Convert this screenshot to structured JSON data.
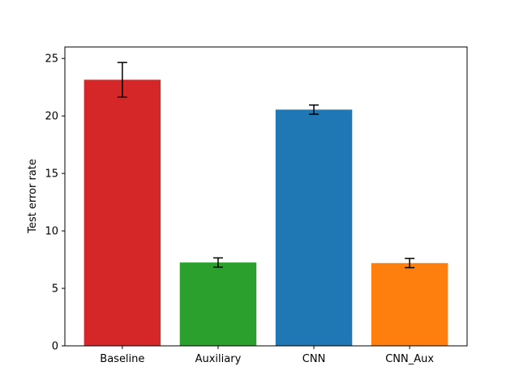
{
  "chart_data": {
    "type": "bar",
    "categories": [
      "Baseline",
      "Auxiliary",
      "CNN",
      "CNN_Aux"
    ],
    "values": [
      23.15,
      7.25,
      20.55,
      7.2
    ],
    "errors": [
      1.5,
      0.4,
      0.4,
      0.4
    ],
    "colors": [
      "#d62728",
      "#2ca02c",
      "#1f77b4",
      "#ff7f0e"
    ],
    "title": "",
    "xlabel": "",
    "ylabel": "Test error rate",
    "ylim": [
      0,
      26
    ],
    "yticks": [
      0,
      5,
      10,
      15,
      20,
      25
    ],
    "grid": false,
    "legend": "none"
  }
}
